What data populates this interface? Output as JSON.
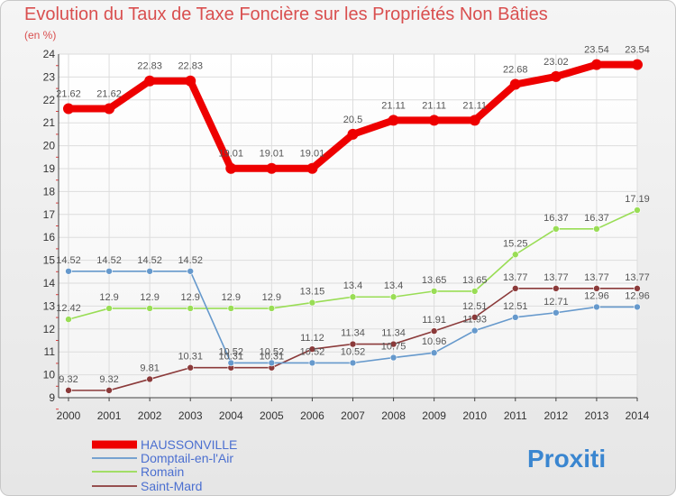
{
  "title": "Evolution du Taux de Taxe Foncière sur les Propriétés Non Bâties",
  "subtitle": "(en %)",
  "logo": "Proxiti",
  "chart_data": {
    "type": "line",
    "title": "Evolution du Taux de Taxe Foncière sur les Propriétés Non Bâties",
    "ylabel": "(en %)",
    "xlabel": "",
    "x": [
      "2000",
      "2001",
      "2002",
      "2003",
      "2004",
      "2005",
      "2006",
      "2007",
      "2008",
      "2009",
      "2010",
      "2011",
      "2012",
      "2013",
      "2014"
    ],
    "ylim": [
      9,
      24
    ],
    "yticks": [
      "9",
      "10",
      "11",
      "12",
      "13",
      "14",
      "15",
      "16",
      "17",
      "18",
      "19",
      "20",
      "21",
      "22",
      "23",
      "24"
    ],
    "grid": true,
    "legend_position": "bottom-left",
    "series": [
      {
        "name": "HAUSSONVILLE",
        "color": "#ee0000",
        "values": [
          21.62,
          21.62,
          22.83,
          22.83,
          19.01,
          19.01,
          19.01,
          20.5,
          21.11,
          21.11,
          21.11,
          22.68,
          23.02,
          23.54,
          23.54
        ],
        "labels": [
          "21.62",
          "21.62",
          "22.83",
          "22.83",
          "19.01",
          "19.01",
          "19.01",
          "20.5",
          "21.11",
          "21.11",
          "21.11",
          "22.68",
          "23.02",
          "23.54",
          "23.54"
        ]
      },
      {
        "name": "Domptail-en-l'Air",
        "color": "#6699cc",
        "values": [
          14.52,
          14.52,
          14.52,
          14.52,
          10.52,
          10.52,
          10.52,
          10.52,
          10.75,
          10.96,
          11.93,
          12.51,
          12.71,
          12.96,
          12.96
        ],
        "labels": [
          "14.52",
          "14.52",
          "14.52",
          "14.52",
          "10.52",
          "10.52",
          "10.52",
          "10.52",
          "10.75",
          "10.96",
          "11.93",
          "12.51",
          "12.71",
          "12.96",
          "12.96"
        ]
      },
      {
        "name": "Romain",
        "color": "#99dd55",
        "values": [
          12.42,
          12.9,
          12.9,
          12.9,
          12.9,
          12.9,
          13.15,
          13.4,
          13.4,
          13.65,
          13.65,
          15.25,
          16.37,
          16.37,
          17.19
        ],
        "labels": [
          "12.42",
          "12.9",
          "12.9",
          "12.9",
          "12.9",
          "12.9",
          "13.15",
          "13.4",
          "13.4",
          "13.65",
          "13.65",
          "15.25",
          "16.37",
          "16.37",
          "17.19"
        ]
      },
      {
        "name": "Saint-Mard",
        "color": "#8b3a3a",
        "values": [
          9.32,
          9.32,
          9.81,
          10.31,
          10.31,
          10.31,
          11.12,
          11.34,
          11.34,
          11.91,
          12.51,
          13.77,
          13.77,
          13.77,
          13.77
        ],
        "labels": [
          "9.32",
          "9.32",
          "9.81",
          "10.31",
          "10.31",
          "10.31",
          "11.12",
          "11.34",
          "11.34",
          "11.91",
          "12.51",
          "13.77",
          "13.77",
          "13.77",
          "13.77"
        ]
      }
    ]
  }
}
